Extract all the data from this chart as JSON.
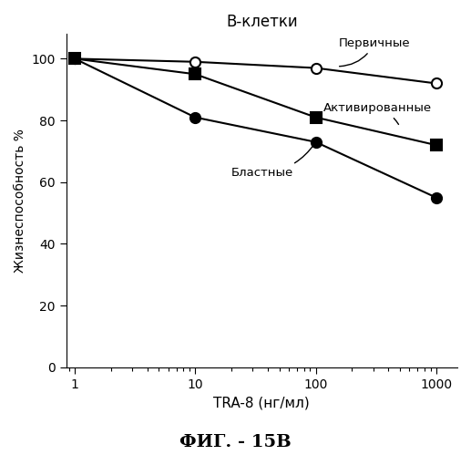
{
  "title": "В-клетки",
  "xlabel": "TRA-8 (нг/мл)",
  "ylabel": "Жизнеспособность %",
  "figsize": [
    5.17,
    4.99
  ],
  "dpi": 100,
  "x_values": [
    1,
    10,
    100,
    1000
  ],
  "series": [
    {
      "name": "Первичные",
      "y_values": [
        100,
        99,
        97,
        92
      ],
      "marker": "o",
      "fillstyle": "none",
      "markersize": 8,
      "linewidth": 1.5
    },
    {
      "name": "Активированные",
      "y_values": [
        100,
        95,
        81,
        72
      ],
      "marker": "s",
      "fillstyle": "full",
      "markersize": 8,
      "linewidth": 1.5
    },
    {
      "name": "Бластные",
      "y_values": [
        100,
        81,
        73,
        55
      ],
      "marker": "o",
      "fillstyle": "full",
      "markersize": 8,
      "linewidth": 1.5
    }
  ],
  "ylim": [
    0,
    108
  ],
  "yticks": [
    0,
    20,
    40,
    60,
    80,
    100
  ],
  "xlim": [
    0.85,
    1500
  ],
  "fig_label": "ФИГ. - 15В",
  "background_color": "#ffffff"
}
